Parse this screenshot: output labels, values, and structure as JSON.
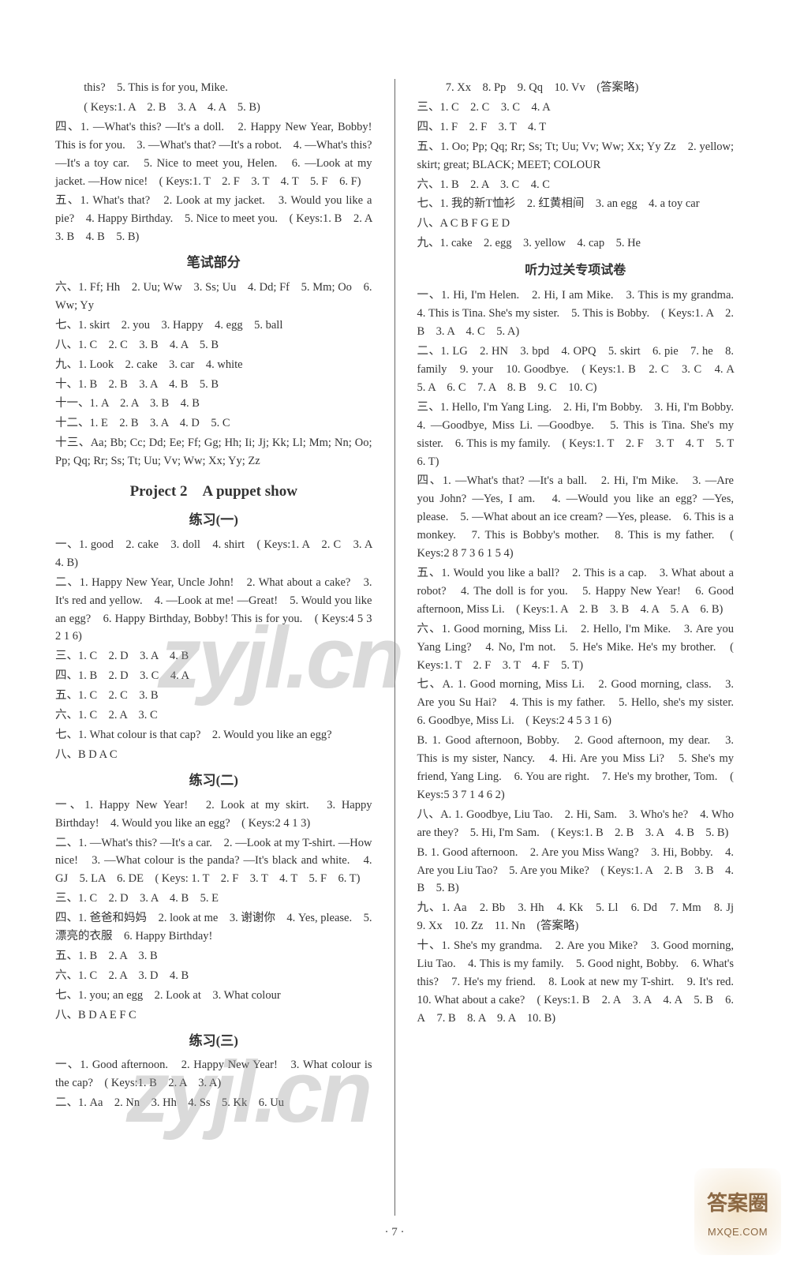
{
  "page_number": "· 7 ·",
  "watermark_text": "zyjl.cn",
  "badge": {
    "line1": "答案圈",
    "line2": "MXQE.COM"
  },
  "left": {
    "pre": [
      "this?　5. This is for you, Mike.",
      "( Keys:1. A　2. B　3. A　4. A　5. B)",
      "四、1. —What's this? —It's a doll.　2. Happy New Year, Bobby! This is for you.　3. —What's that? —It's a robot.　4. —What's this? —It's a toy car.　5. Nice to meet you, Helen.　6. —Look at my jacket. —How nice!　( Keys:1. T　2. F　3. T　4. T　5. F　6. F)",
      "五、1. What's that?　2. Look at my jacket.　3. Would you like a pie?　4. Happy Birthday.　5. Nice to meet you.　( Keys:1. B　2. A　3. B　4. B　5. B)"
    ],
    "written_title": "笔试部分",
    "written": [
      "六、1. Ff; Hh　2. Uu; Ww　3. Ss; Uu　4. Dd; Ff　5. Mm; Oo　6. Ww; Yy",
      "七、1. skirt　2. you　3. Happy　4. egg　5. ball",
      "八、1. C　2. C　3. B　4. A　5. B",
      "九、1. Look　2. cake　3. car　4. white",
      "十、1. B　2. B　3. A　4. B　5. B",
      "十一、1. A　2. A　3. B　4. B",
      "十二、1. E　2. B　3. A　4. D　5. C",
      "十三、Aa; Bb; Cc; Dd; Ee; Ff; Gg; Hh; Ii; Jj; Kk; Ll; Mm; Nn; Oo; Pp; Qq; Rr; Ss; Tt; Uu; Vv; Ww; Xx; Yy; Zz"
    ],
    "project_title": "Project 2　A puppet show",
    "ex1_title": "练习(一)",
    "ex1": [
      "一、1. good　2. cake　3. doll　4. shirt　( Keys:1. A　2. C　3. A　4. B)",
      "二、1. Happy New Year, Uncle John!　2. What about a cake?　3. It's red and yellow.　4. —Look at me! —Great!　5. Would you like an egg?　6. Happy Birthday, Bobby! This is for you.　( Keys:4 5 3 2 1 6)",
      "三、1. C　2. D　3. A　4. B",
      "四、1. B　2. D　3. C　4. A",
      "五、1. C　2. C　3. B",
      "六、1. C　2. A　3. C",
      "七、1. What colour is that cap?　2. Would you like an egg?",
      "八、B D A C"
    ],
    "ex2_title": "练习(二)",
    "ex2": [
      "一、1. Happy New Year!　2. Look at my skirt.　3. Happy Birthday!　4. Would you like an egg?　( Keys:2 4 1 3)",
      "二、1. —What's this? —It's a car.　2. —Look at my T-shirt. —How nice!　3. —What colour is the panda? —It's black and white.　4. GJ　5. LA　6. DE　( Keys: 1. T　2. F　3. T　4. T　5. F　6. T)",
      "三、1. C　2. D　3. A　4. B　5. E",
      "四、1. 爸爸和妈妈　2. look at me　3. 谢谢你　4. Yes, please.　5. 漂亮的衣服　6. Happy Birthday!",
      "五、1. B　2. A　3. B",
      "六、1. C　2. A　3. D　4. B",
      "七、1. you; an egg　2. Look at　3. What colour",
      "八、B D A E F C"
    ],
    "ex3_title": "练习(三)",
    "ex3": [
      "一、1. Good afternoon.　2. Happy New Year!　3. What colour is the cap?　( Keys:1. B　2. A　3. A)",
      "二、1. Aa　2. Nn　3. Hh　4. Ss　5. Kk　6. Uu"
    ]
  },
  "right": {
    "cont": [
      "7. Xx　8. Pp　9. Qq　10. Vv　(答案略)",
      "三、1. C　2. C　3. C　4. A",
      "四、1. F　2. F　3. T　4. T",
      "五、1. Oo; Pp; Qq; Rr; Ss; Tt; Uu; Vv; Ww; Xx; Yy Zz　2. yellow; skirt; great; BLACK; MEET; COLOUR",
      "六、1. B　2. A　3. C　4. C",
      "七、1. 我的新T恤衫　2. 红黄相间　3. an egg　4. a toy car",
      "八、A C B F G E D",
      "九、1. cake　2. egg　3. yellow　4. cap　5. He"
    ],
    "listen_title": "听力过关专项试卷",
    "listen": [
      "一、1. Hi, I'm Helen.　2. Hi, I am Mike.　3. This is my grandma.　4. This is Tina. She's my sister.　5. This is Bobby.　( Keys:1. A　2. B　3. A　4. C　5. A)",
      "二、1. LG　2. HN　3. bpd　4. OPQ　5. skirt　6. pie　7. he　8. family　9. your　10. Goodbye.　( Keys:1. B　2. C　3. C　4. A　5. A　6. C　7. A　8. B　9. C　10. C)",
      "三、1. Hello, I'm Yang Ling.　2. Hi, I'm Bobby.　3. Hi, I'm Bobby.　4. —Goodbye, Miss Li. —Goodbye.　5. This is Tina. She's my sister.　6. This is my family.　( Keys:1. T　2. F　3. T　4. T　5. T　6. T)",
      "四、1. —What's that? —It's a ball.　2. Hi, I'm Mike.　3. —Are you John? —Yes, I am.　4. —Would you like an egg? —Yes, please.　5. —What about an ice cream? —Yes, please.　6. This is a monkey.　7. This is Bobby's mother.　8. This is my father.　( Keys:2 8 7 3 6 1 5 4)",
      "五、1. Would you like a ball?　2. This is a cap.　3. What about a robot?　4. The doll is for you.　5. Happy New Year!　6. Good afternoon, Miss Li.　( Keys:1. A　2. B　3. B　4. A　5. A　6. B)",
      "六、1. Good morning, Miss Li.　2. Hello, I'm Mike.　3. Are you Yang Ling?　4. No, I'm not.　5. He's Mike. He's my brother.　( Keys:1. T　2. F　3. T　4. F　5. T)",
      "七、A. 1. Good morning, Miss Li.　2. Good morning, class.　3. Are you Su Hai?　4. This is my father.　5. Hello, she's my sister.　6. Goodbye, Miss Li.　( Keys:2 4 5 3 1 6)",
      "B. 1. Good afternoon, Bobby.　2. Good afternoon, my dear.　3. This is my sister, Nancy.　4. Hi. Are you Miss Li?　5. She's my friend, Yang Ling.　6. You are right.　7. He's my brother, Tom.　( Keys:5 3 7 1 4 6 2)",
      "八、A. 1. Goodbye, Liu Tao.　2. Hi, Sam.　3. Who's he?　4. Who are they?　5. Hi, I'm Sam.　( Keys:1. B　2. B　3. A　4. B　5. B)",
      "B. 1. Good afternoon.　2. Are you Miss Wang?　3. Hi, Bobby.　4. Are you Liu Tao?　5. Are you Mike?　( Keys:1. A　2. B　3. B　4. B　5. B)",
      "九、1. Aa　2. Bb　3. Hh　4. Kk　5. Ll　6. Dd　7. Mm　8. Jj　9. Xx　10. Zz　11. Nn　(答案略)",
      "十、1. She's my grandma.　2. Are you Mike?　3. Good morning, Liu Tao.　4. This is my family.　5. Good night, Bobby.　6. What's this?　7. He's my friend.　8. Look at new my T-shirt.　9. It's red.　10. What about a cake?　( Keys:1. B　2. A　3. A　4. A　5. B　6. A　7. B　8. A　9. A　10. B)"
    ]
  }
}
